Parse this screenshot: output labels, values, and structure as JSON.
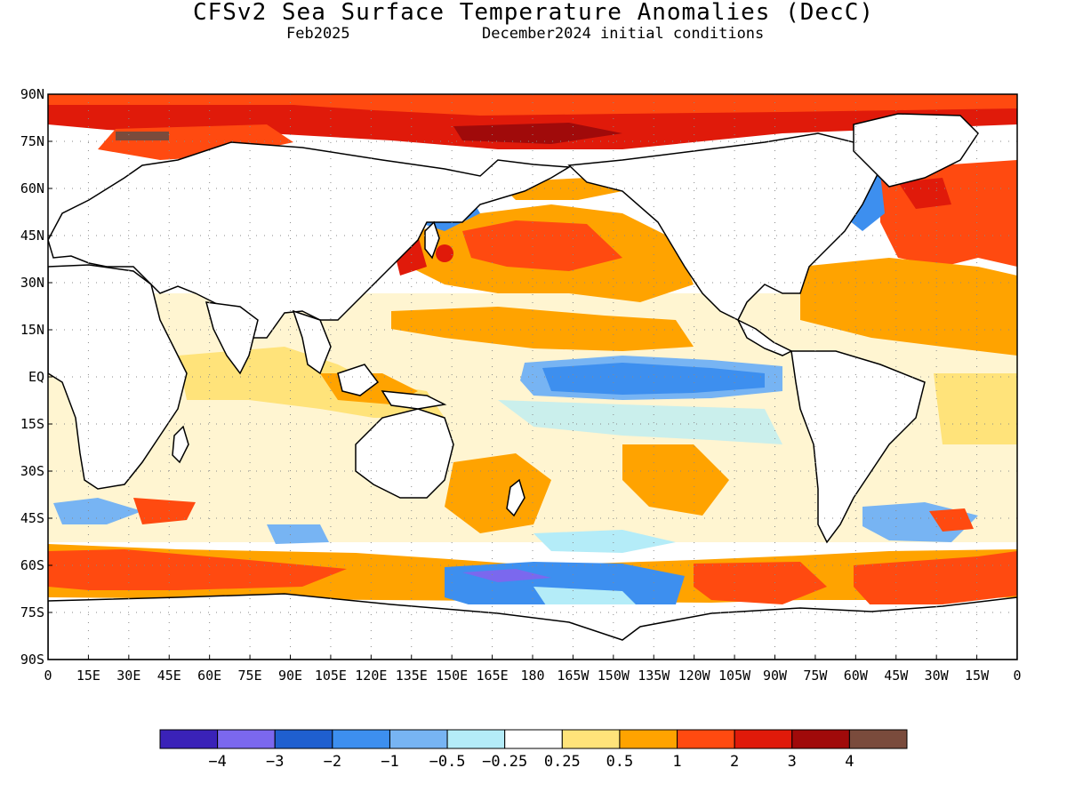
{
  "title": "CFSv2 Sea Surface Temperature Anomalies (DecC)",
  "subtitle_left": "Feb2025",
  "subtitle_right": "December2024 initial conditions",
  "map": {
    "lat_labels": [
      "90N",
      "75N",
      "60N",
      "45N",
      "30N",
      "15N",
      "EQ",
      "15S",
      "30S",
      "45S",
      "60S",
      "75S",
      "90S"
    ],
    "lon_labels": [
      "0",
      "15E",
      "30E",
      "45E",
      "60E",
      "75E",
      "90E",
      "105E",
      "120E",
      "135E",
      "150E",
      "165E",
      "180",
      "165W",
      "150W",
      "135W",
      "120W",
      "105W",
      "90W",
      "75W",
      "60W",
      "45W",
      "30W",
      "15W",
      "0"
    ]
  },
  "colorbar": {
    "colors": [
      "#3a22b8",
      "#7b68ee",
      "#1f5fcf",
      "#3d8fef",
      "#77b4f3",
      "#b4ecf8",
      "#ffffff",
      "#ffe37a",
      "#ffa300",
      "#ff4a10",
      "#e01a0a",
      "#a00a0a",
      "#7a4b3c"
    ],
    "labels": [
      "−4",
      "−3",
      "−2",
      "−1",
      "−0.5",
      "−0.25",
      "0.25",
      "0.5",
      "1",
      "2",
      "3",
      "4"
    ]
  },
  "palette": {
    "land": "#ffffff",
    "coast": "#000000",
    "grid": "#8a8a8a"
  }
}
